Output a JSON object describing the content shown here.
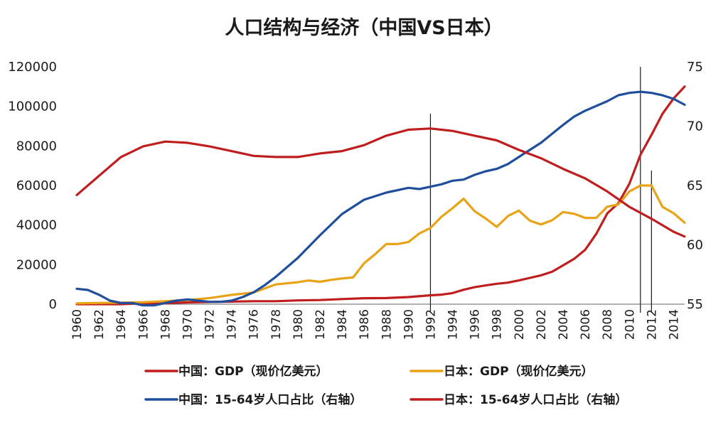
{
  "chart_data": {
    "type": "line",
    "title": "人口结构与经济（中国VS日本）",
    "left_axis": {
      "min": 0,
      "max": 120000,
      "ticks": [
        "0",
        "20000",
        "40000",
        "60000",
        "80000",
        "100000",
        "120000"
      ]
    },
    "right_axis": {
      "min": 55,
      "max": 75,
      "ticks": [
        "55",
        "60",
        "65",
        "70",
        "75"
      ]
    },
    "x_axis": {
      "min": 1960,
      "max": 2015,
      "ticks": [
        "1960",
        "1962",
        "1964",
        "1966",
        "1968",
        "1970",
        "1972",
        "1974",
        "1976",
        "1978",
        "1980",
        "1982",
        "1984",
        "1986",
        "1988",
        "1990",
        "1992",
        "1994",
        "1996",
        "1998",
        "2000",
        "2002",
        "2004",
        "2006",
        "2008",
        "2010",
        "2012",
        "2014"
      ]
    },
    "vertical_markers": [
      1992,
      2011,
      2012
    ],
    "legend_placement": "bottom",
    "grid": false,
    "series": [
      {
        "name": "中国：GDP（现价亿美元）",
        "axis": "left",
        "color": "#c01e1e",
        "x": [
          1960,
          1962,
          1964,
          1966,
          1968,
          1970,
          1972,
          1974,
          1976,
          1978,
          1980,
          1982,
          1984,
          1986,
          1988,
          1990,
          1992,
          1993,
          1994,
          1995,
          1996,
          1997,
          1998,
          1999,
          2000,
          2001,
          2002,
          2003,
          2004,
          2005,
          2006,
          2007,
          2008,
          2009,
          2010,
          2011,
          2012,
          2013,
          2014,
          2015
        ],
        "values": [
          0,
          0,
          0,
          500,
          500,
          900,
          1100,
          1300,
          1500,
          1500,
          1900,
          2100,
          2600,
          3000,
          3100,
          3600,
          4500,
          4800,
          5600,
          7300,
          8600,
          9500,
          10300,
          10900,
          12000,
          13300,
          14600,
          16400,
          19600,
          22900,
          27500,
          35500,
          45900,
          51000,
          60900,
          75500,
          85600,
          96300,
          104000,
          110000
        ]
      },
      {
        "name": "日本：GDP（现价亿美元）",
        "axis": "left",
        "color": "#e8a317",
        "x": [
          1960,
          1962,
          1964,
          1966,
          1968,
          1970,
          1972,
          1974,
          1976,
          1978,
          1980,
          1981,
          1982,
          1983,
          1984,
          1985,
          1986,
          1987,
          1988,
          1989,
          1990,
          1991,
          1992,
          1993,
          1994,
          1995,
          1996,
          1997,
          1998,
          1999,
          2000,
          2001,
          2002,
          2003,
          2004,
          2005,
          2006,
          2007,
          2008,
          2009,
          2010,
          2011,
          2012,
          2013,
          2014,
          2015
        ],
        "values": [
          400,
          600,
          800,
          1000,
          1500,
          2100,
          3100,
          4700,
          5900,
          10000,
          11100,
          12000,
          11300,
          12300,
          13000,
          13500,
          20700,
          25300,
          30400,
          30400,
          31400,
          35800,
          38500,
          44200,
          48500,
          53300,
          47000,
          43300,
          39100,
          44500,
          47300,
          42200,
          40300,
          42400,
          46600,
          45700,
          43600,
          43600,
          49300,
          50400,
          57000,
          60000,
          60000,
          49200,
          46000,
          41200
        ]
      },
      {
        "name": "中国：15-64岁人口占比（右轴）",
        "axis": "right",
        "color": "#1f4e9c",
        "x": [
          1960,
          1961,
          1962,
          1963,
          1964,
          1965,
          1966,
          1967,
          1968,
          1969,
          1970,
          1971,
          1972,
          1973,
          1974,
          1975,
          1976,
          1977,
          1978,
          1979,
          1980,
          1982,
          1984,
          1986,
          1988,
          1990,
          1991,
          1992,
          1993,
          1994,
          1995,
          1996,
          1997,
          1998,
          1999,
          2000,
          2002,
          2004,
          2005,
          2006,
          2008,
          2009,
          2010,
          2011,
          2012,
          2013,
          2014,
          2015
        ],
        "values": [
          56.3,
          56.2,
          55.8,
          55.3,
          55.1,
          55.1,
          54.9,
          54.9,
          55.1,
          55.3,
          55.4,
          55.3,
          55.2,
          55.2,
          55.3,
          55.6,
          56.0,
          56.6,
          57.3,
          58.1,
          58.9,
          60.8,
          62.6,
          63.8,
          64.4,
          64.8,
          64.7,
          64.9,
          65.1,
          65.4,
          65.5,
          65.9,
          66.2,
          66.4,
          66.8,
          67.4,
          68.6,
          70.1,
          70.8,
          71.3,
          72.1,
          72.6,
          72.8,
          72.9,
          72.8,
          72.6,
          72.3,
          71.8
        ]
      },
      {
        "name": "日本：15-64岁人口占比（右轴）",
        "axis": "right",
        "color": "#c01e1e",
        "x": [
          1960,
          1962,
          1964,
          1966,
          1968,
          1970,
          1972,
          1974,
          1976,
          1978,
          1980,
          1982,
          1984,
          1986,
          1988,
          1990,
          1992,
          1994,
          1996,
          1998,
          2000,
          2002,
          2004,
          2006,
          2008,
          2010,
          2012,
          2014,
          2015
        ],
        "values": [
          64.2,
          65.8,
          67.4,
          68.3,
          68.7,
          68.6,
          68.3,
          67.9,
          67.5,
          67.4,
          67.4,
          67.7,
          67.9,
          68.4,
          69.2,
          69.7,
          69.8,
          69.6,
          69.2,
          68.8,
          68.0,
          67.3,
          66.4,
          65.6,
          64.5,
          63.2,
          62.2,
          61.1,
          60.7
        ]
      }
    ]
  }
}
